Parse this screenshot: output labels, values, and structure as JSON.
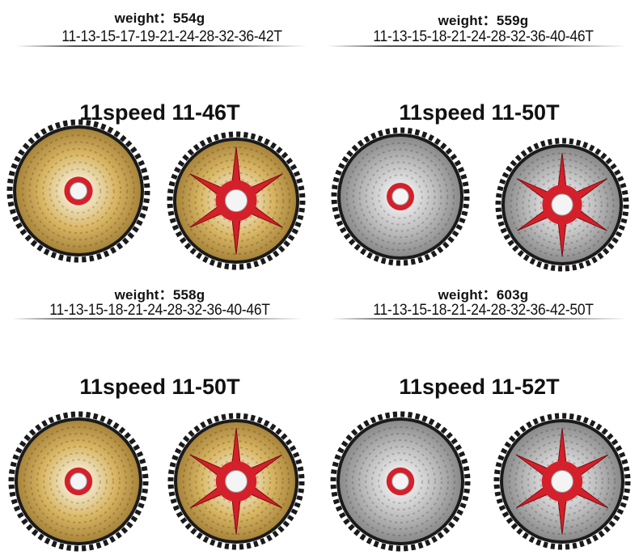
{
  "colors": {
    "gold": "#d9b764",
    "silver": "#bcbcbc",
    "teeth": "#1a1a1a",
    "spider": "#d4202a"
  },
  "blocks": [
    {
      "weight": "weight：554g",
      "ratio": "11-13-15-17-19-21-24-28-32-36-42T"
    },
    {
      "weight": "weight：559g",
      "ratio": "11-13-15-18-21-24-28-32-36-40-46T"
    },
    {
      "title": "11speed 11-46T",
      "finish": "gold",
      "weight": "weight：558g",
      "ratio": "11-13-15-18-21-24-28-32-36-40-46T"
    },
    {
      "title": "11speed 11-50T",
      "finish": "silver",
      "weight": "weight：603g",
      "ratio": "11-13-15-18-21-24-28-32-36-42-50T"
    },
    {
      "title": "11speed 11-50T",
      "finish": "gold"
    },
    {
      "title": "11speed 11-52T",
      "finish": "silver"
    }
  ]
}
